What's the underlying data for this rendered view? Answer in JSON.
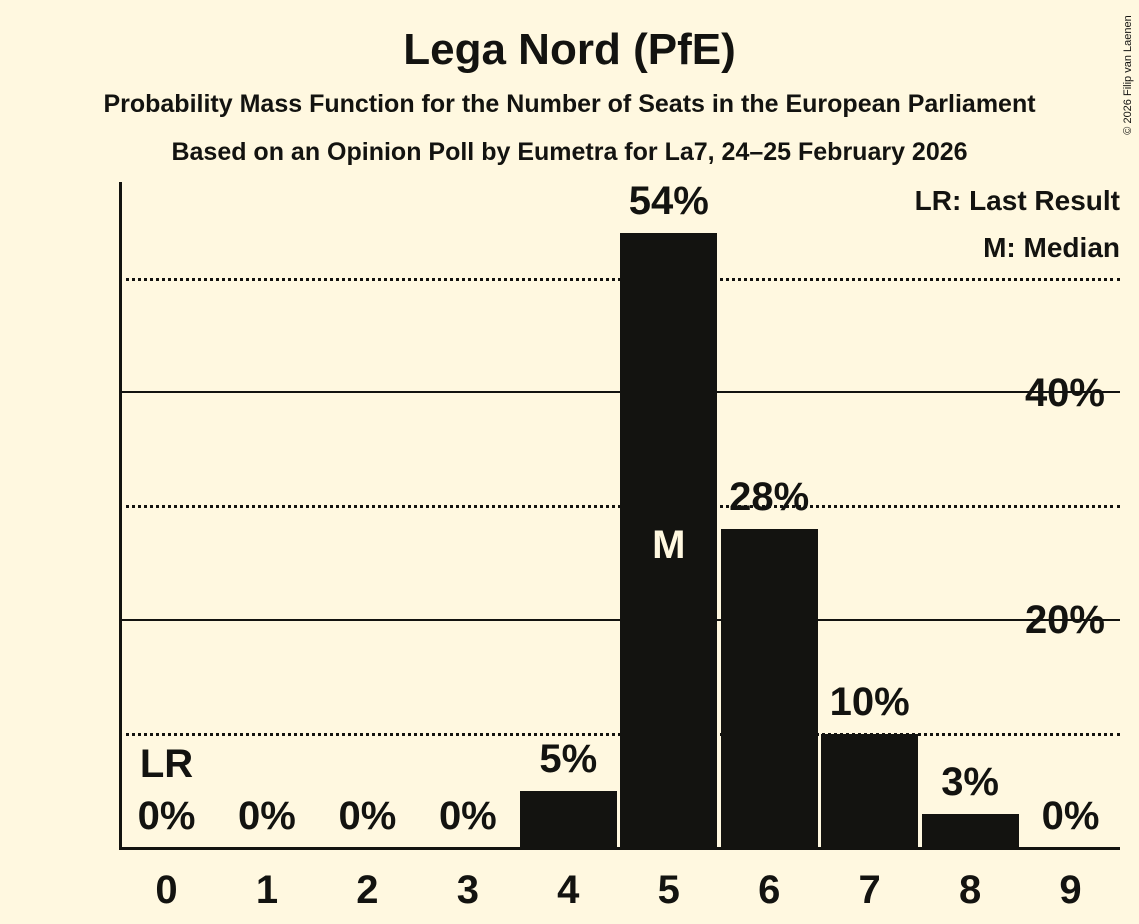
{
  "header": {
    "title": "Lega Nord (PfE)",
    "subtitle1": "Probability Mass Function for the Number of Seats in the European Parliament",
    "subtitle2": "Based on an Opinion Poll by Eumetra for La7, 24–25 February 2026"
  },
  "legend": {
    "last_result": "LR: Last Result",
    "median": "M: Median"
  },
  "copyright": "© 2026 Filip van Laenen",
  "colors": {
    "background": "#FFF8E0",
    "bar": "#131310",
    "text": "#131310",
    "median_text": "#FFF8E0"
  },
  "chart_data": {
    "type": "bar",
    "title": "Lega Nord (PfE)",
    "categories": [
      "0",
      "1",
      "2",
      "3",
      "4",
      "5",
      "6",
      "7",
      "8",
      "9"
    ],
    "values": [
      0,
      0,
      0,
      0,
      5,
      54,
      28,
      10,
      3,
      0
    ],
    "value_labels": [
      "0%",
      "0%",
      "0%",
      "0%",
      "5%",
      "54%",
      "28%",
      "10%",
      "3%",
      "0%"
    ],
    "unit": "%",
    "ylim": [
      0,
      58.5
    ],
    "grid": true,
    "legend_position": "top-right",
    "y_ticks": [
      {
        "pct": 20,
        "label": "20%"
      },
      {
        "pct": 40,
        "label": "40%"
      }
    ],
    "gridlines": [
      {
        "pct": 10,
        "style": "dotted"
      },
      {
        "pct": 20,
        "style": "solid"
      },
      {
        "pct": 30,
        "style": "dotted"
      },
      {
        "pct": 40,
        "style": "solid"
      },
      {
        "pct": 50,
        "style": "dotted"
      }
    ],
    "median_seat": 5,
    "median_marker": "M",
    "last_result_seat": 0,
    "last_result_marker": "LR"
  }
}
